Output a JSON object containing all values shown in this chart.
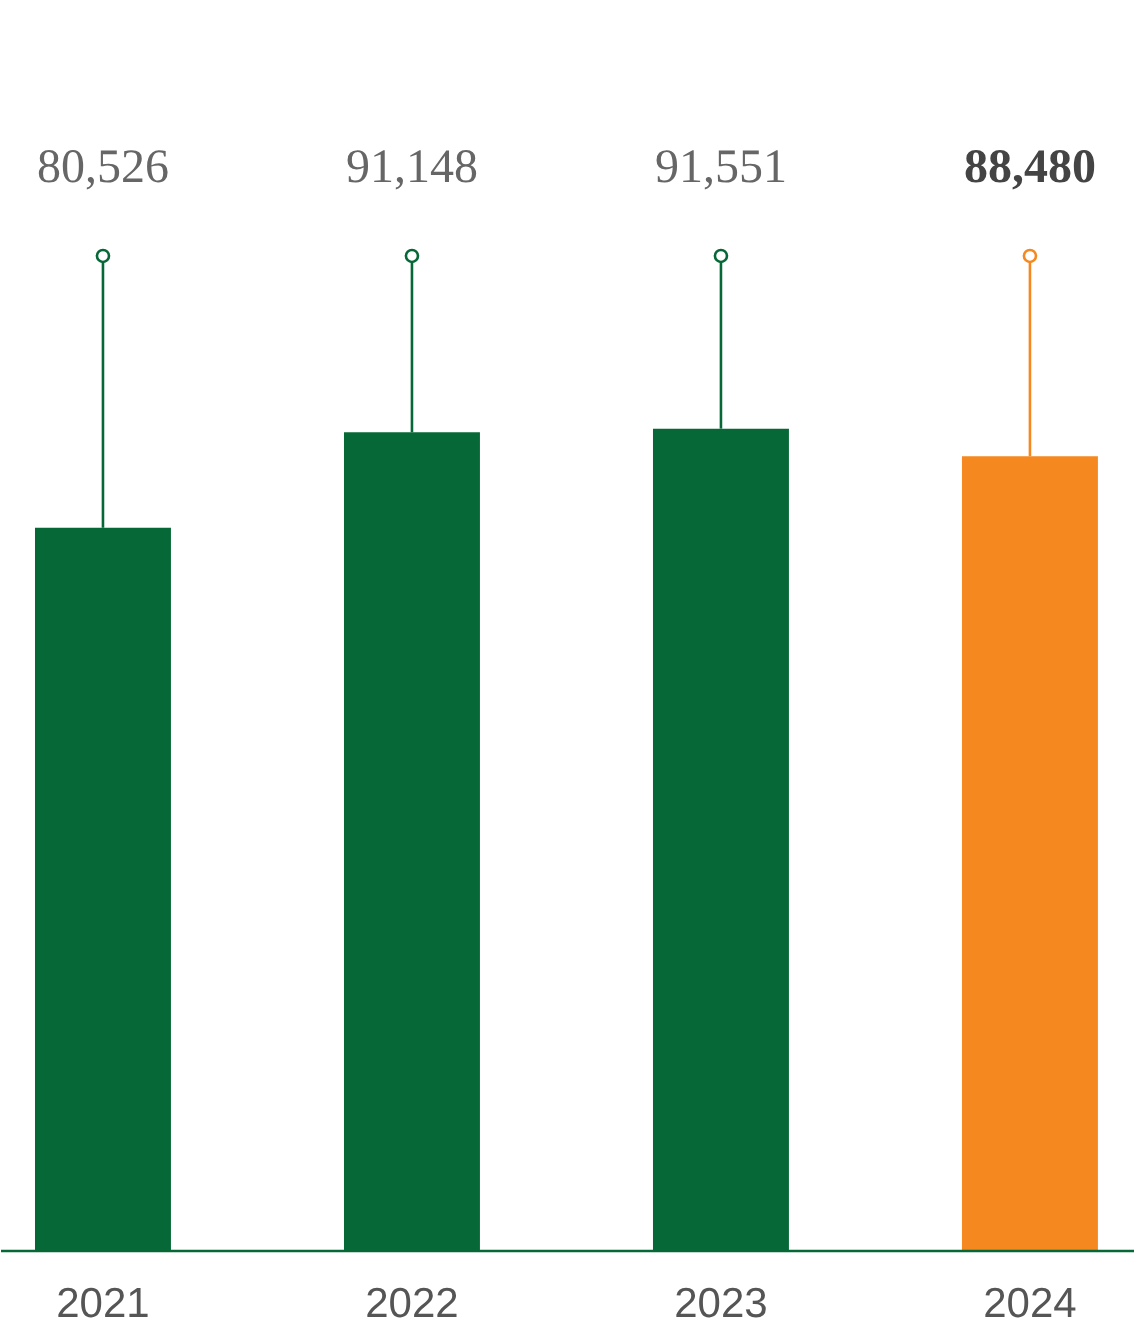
{
  "chart_data": {
    "type": "bar",
    "categories": [
      "2021",
      "2022",
      "2023",
      "2024"
    ],
    "values": [
      80526,
      91148,
      91551,
      88480
    ],
    "colors": [
      "#066836",
      "#066836",
      "#066836",
      "#f5891f"
    ],
    "value_labels": [
      "80,526",
      "91,148",
      "91,551",
      "88,480"
    ]
  }
}
